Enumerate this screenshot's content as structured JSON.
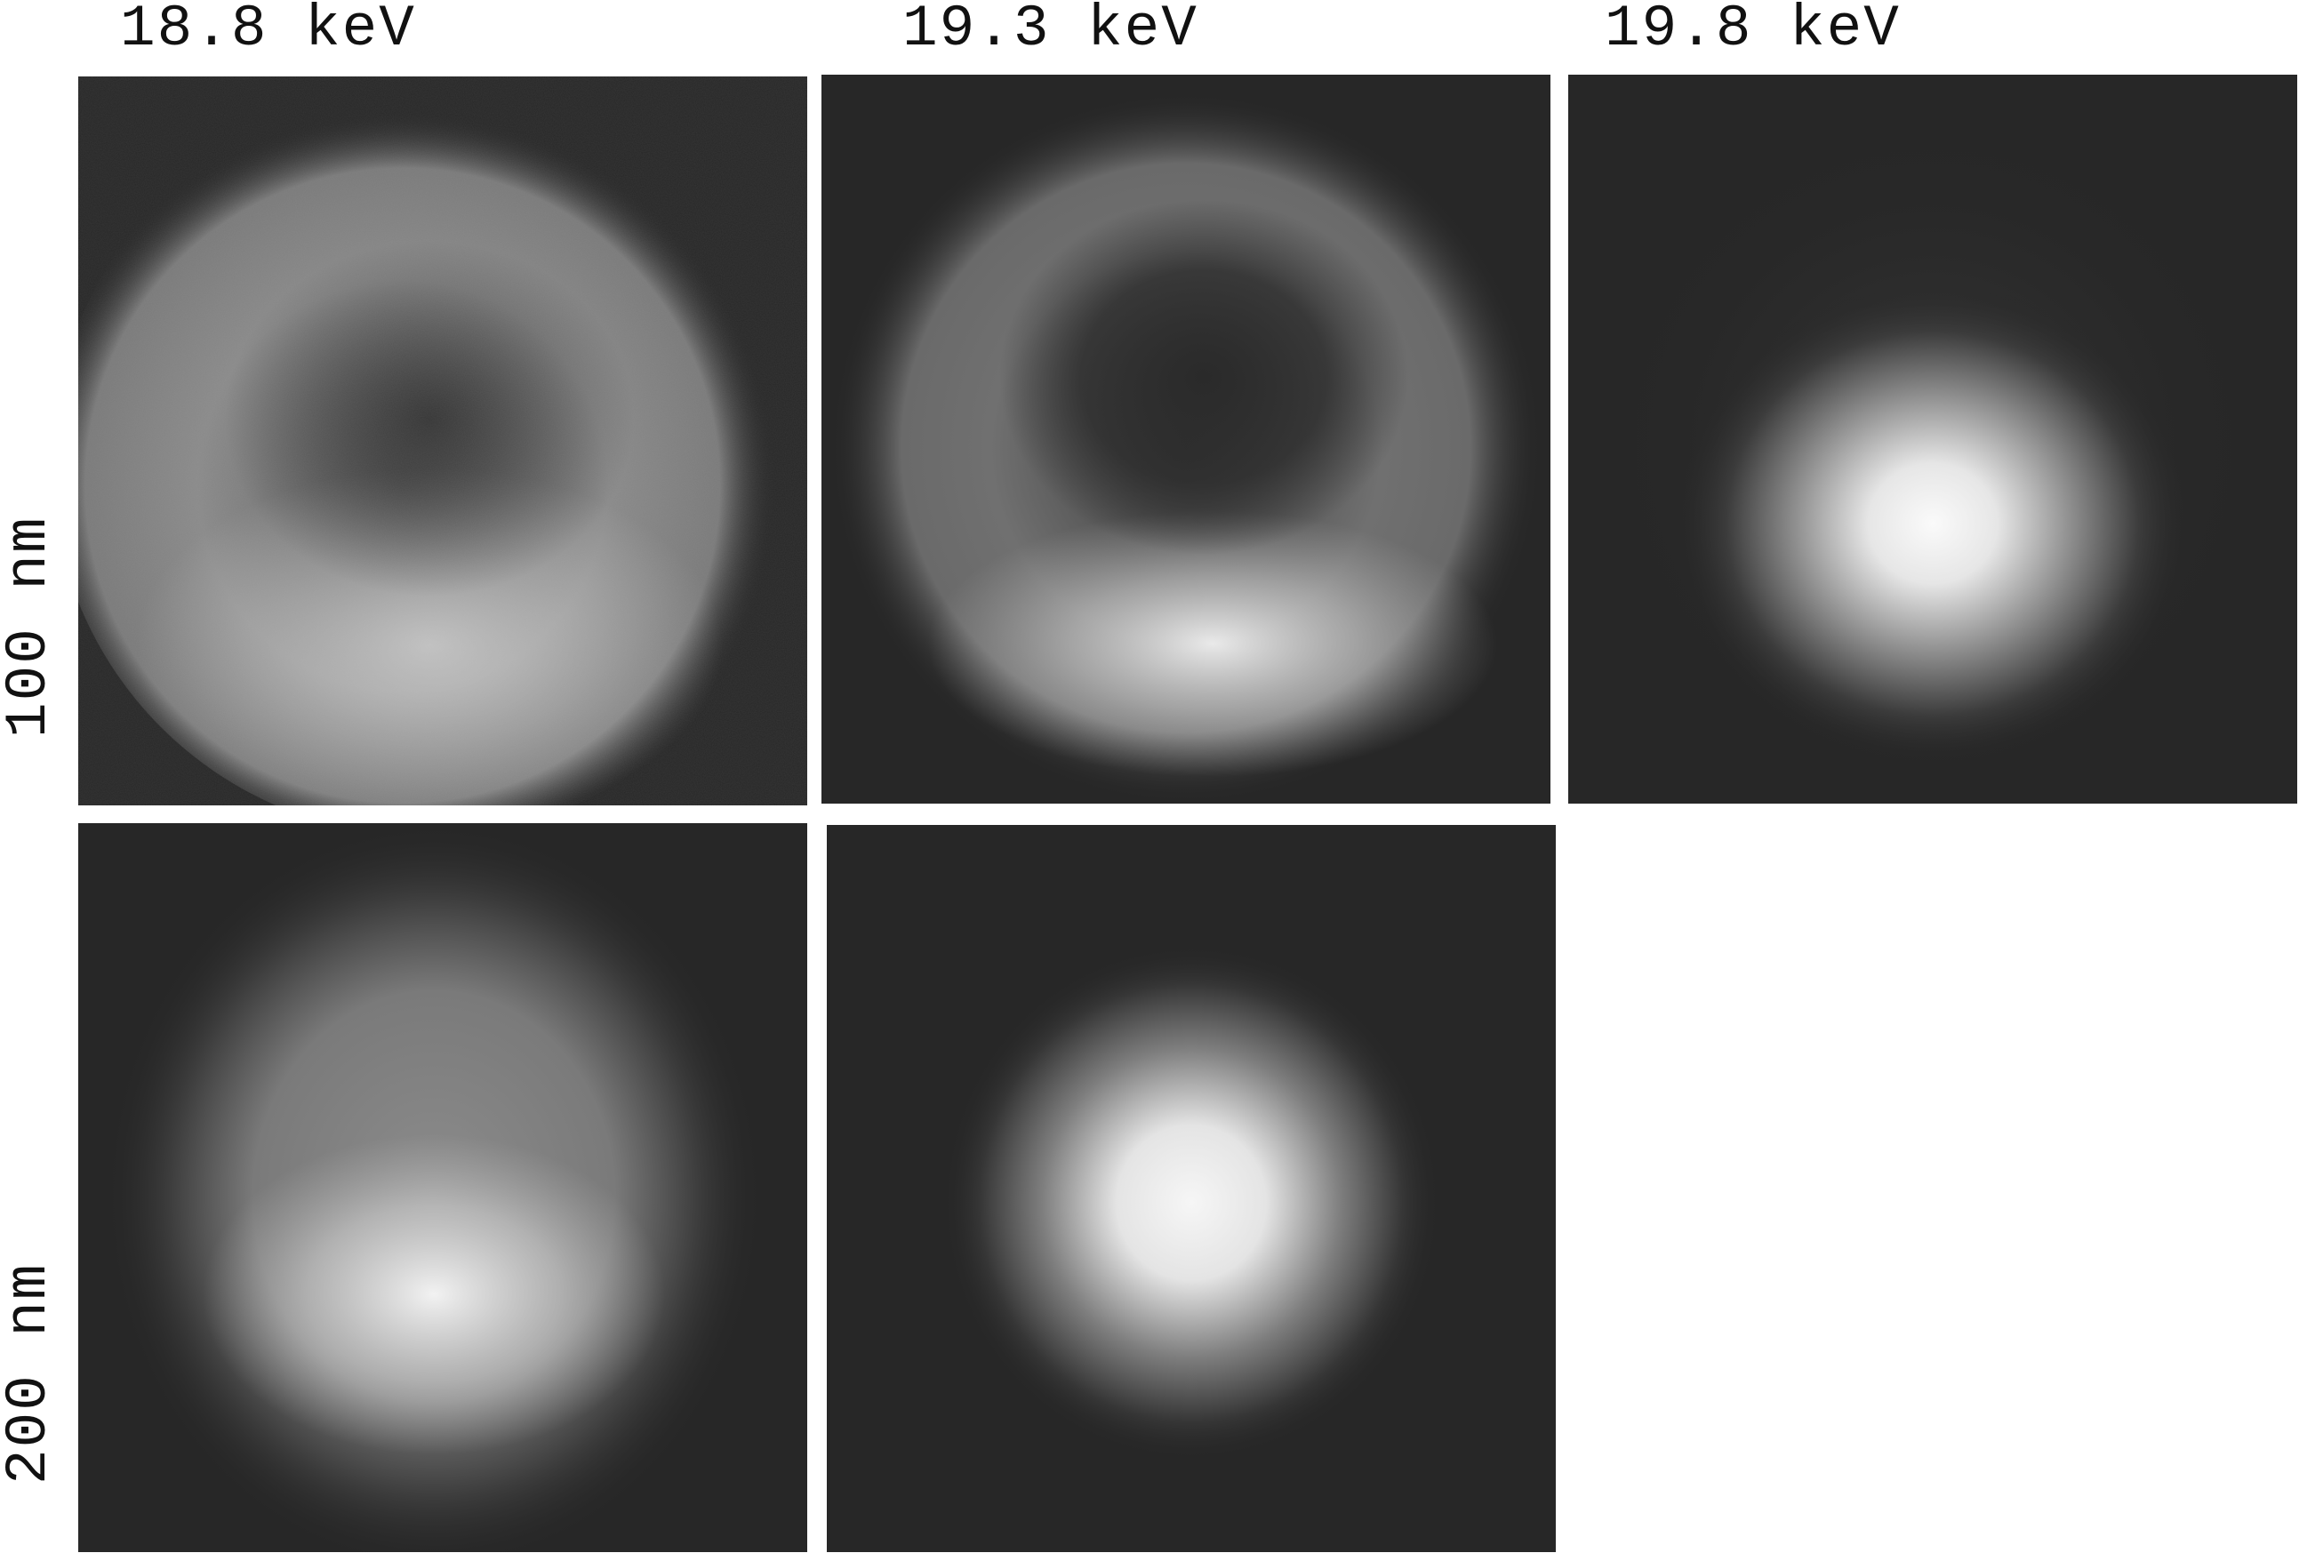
{
  "columns": [
    {
      "label": "18.8 keV"
    },
    {
      "label": "19.3 keV"
    },
    {
      "label": "19.8 keV"
    }
  ],
  "rows": [
    {
      "label": "100 nm"
    },
    {
      "label": "200 nm"
    }
  ],
  "panels": [
    {
      "row": "100 nm",
      "energy": "18.8 keV",
      "pattern": "broad ring, bright lower half, dim center"
    },
    {
      "row": "100 nm",
      "energy": "19.3 keV",
      "pattern": "ring, bright lower crescent, dark center"
    },
    {
      "row": "100 nm",
      "energy": "19.8 keV",
      "pattern": "bright central spot"
    },
    {
      "row": "200 nm",
      "energy": "18.8 keV",
      "pattern": "diffuse blob, bright lower part"
    },
    {
      "row": "200 nm",
      "energy": "19.3 keV",
      "pattern": "bright central spot"
    }
  ],
  "colors": {
    "panel_background": "#272727",
    "label_text": "#111111"
  }
}
